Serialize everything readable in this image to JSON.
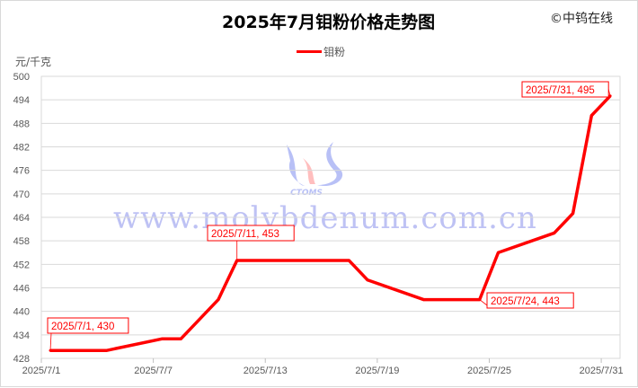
{
  "header": {
    "title": "2025年7月钼粉价格走势图",
    "copyright": "©中钨在线"
  },
  "watermark": {
    "text": "www.molybdenum.com.cn",
    "logo_text": "CTOMS"
  },
  "chart_data": {
    "type": "line",
    "title": "2025年7月钼粉价格走势图",
    "ylabel": "元/千克",
    "xlabel": "",
    "ylim": [
      428,
      500
    ],
    "yticks": [
      428,
      434,
      440,
      446,
      452,
      458,
      464,
      470,
      476,
      482,
      488,
      494,
      500
    ],
    "xticks": [
      "2025/7/1",
      "2025/7/7",
      "2025/7/13",
      "2025/7/19",
      "2025/7/25",
      "2025/7/31"
    ],
    "grid": true,
    "legend": "top",
    "color": "#ff0000",
    "series": [
      {
        "name": "钼粉",
        "x": [
          "2025/7/1",
          "2025/7/4",
          "2025/7/7",
          "2025/7/8",
          "2025/7/10",
          "2025/7/11",
          "2025/7/17",
          "2025/7/18",
          "2025/7/21",
          "2025/7/24",
          "2025/7/25",
          "2025/7/28",
          "2025/7/29",
          "2025/7/30",
          "2025/7/31"
        ],
        "values": [
          430,
          430,
          433,
          433,
          443,
          453,
          453,
          448,
          443,
          443,
          455,
          460,
          465,
          490,
          495
        ]
      }
    ],
    "annotations": [
      {
        "x": "2025/7/1",
        "y": 430,
        "text": "2025/7/1, 430"
      },
      {
        "x": "2025/7/11",
        "y": 453,
        "text": "2025/7/11, 453"
      },
      {
        "x": "2025/7/24",
        "y": 443,
        "text": "2025/7/24, 443"
      },
      {
        "x": "2025/7/31",
        "y": 495,
        "text": "2025/7/31, 495"
      }
    ]
  }
}
